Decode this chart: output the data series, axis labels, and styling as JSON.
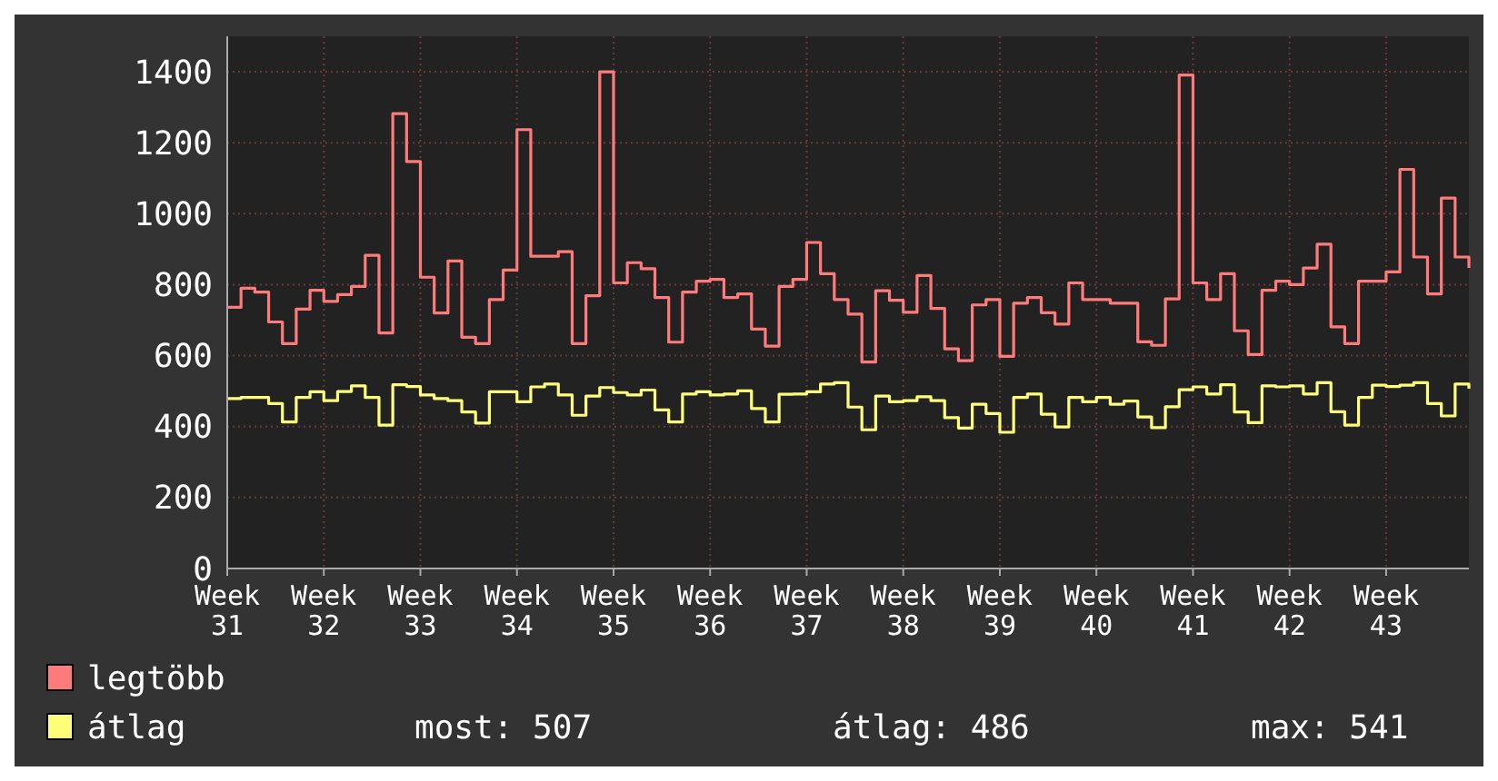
{
  "chart_data": {
    "type": "step",
    "categories": [
      "Week 31",
      null,
      null,
      null,
      null,
      null,
      null,
      "Week 32",
      null,
      null,
      null,
      null,
      null,
      null,
      "Week 33",
      null,
      null,
      null,
      null,
      null,
      null,
      "Week 34",
      null,
      null,
      null,
      null,
      null,
      null,
      "Week 35",
      null,
      null,
      null,
      null,
      null,
      null,
      "Week 36",
      null,
      null,
      null,
      null,
      null,
      null,
      "Week 37",
      null,
      null,
      null,
      null,
      null,
      null,
      "Week 38",
      null,
      null,
      null,
      null,
      null,
      null,
      "Week 39",
      null,
      null,
      null,
      null,
      null,
      null,
      "Week 40",
      null,
      null,
      null,
      null,
      null,
      null,
      "Week 41",
      null,
      null,
      null,
      null,
      null,
      null,
      "Week 42",
      null,
      null,
      null,
      null,
      null,
      null,
      "Week 43",
      null,
      null,
      null,
      null,
      null,
      null
    ],
    "series": [
      {
        "name": "legtöbb",
        "color": "#ff7b7b",
        "values": [
          736,
          790,
          779,
          695,
          634,
          731,
          784,
          753,
          772,
          795,
          883,
          664,
          1282,
          1147,
          821,
          720,
          867,
          652,
          634,
          758,
          841,
          1237,
          880,
          880,
          893,
          634,
          769,
          1400,
          805,
          862,
          845,
          764,
          638,
          779,
          810,
          815,
          764,
          774,
          675,
          627,
          795,
          815,
          919,
          831,
          758,
          717,
          582,
          783,
          756,
          722,
          826,
          733,
          619,
          586,
          743,
          758,
          598,
          748,
          764,
          721,
          689,
          805,
          758,
          758,
          748,
          748,
          639,
          629,
          760,
          1391,
          805,
          758,
          831,
          670,
          603,
          784,
          810,
          800,
          847,
          914,
          681,
          634,
          810,
          810,
          836,
          1125,
          878,
          774,
          1044,
          878,
          847
        ]
      },
      {
        "name": "átlag",
        "color": "#ffff77",
        "values": [
          479,
          482,
          482,
          465,
          413,
          482,
          498,
          473,
          499,
          515,
          482,
          404,
          518,
          513,
          489,
          479,
          473,
          441,
          410,
          498,
          498,
          470,
          512,
          520,
          489,
          432,
          486,
          510,
          496,
          489,
          503,
          447,
          413,
          492,
          498,
          489,
          492,
          501,
          451,
          413,
          491,
          492,
          498,
          520,
          524,
          455,
          391,
          486,
          470,
          473,
          484,
          473,
          425,
          396,
          463,
          437,
          384,
          482,
          492,
          435,
          399,
          482,
          470,
          482,
          463,
          472,
          427,
          397,
          456,
          504,
          512,
          492,
          518,
          441,
          411,
          515,
          512,
          515,
          492,
          524,
          442,
          404,
          482,
          517,
          513,
          517,
          524,
          465,
          430,
          520,
          507
        ]
      }
    ],
    "ylim": [
      0,
      1500
    ],
    "yticks": [
      0,
      200,
      400,
      600,
      800,
      1000,
      1200,
      1400
    ],
    "grid": true,
    "legend": "bottom",
    "annotations": [
      "most: 507",
      "átlag: 486",
      "max: 541"
    ]
  }
}
